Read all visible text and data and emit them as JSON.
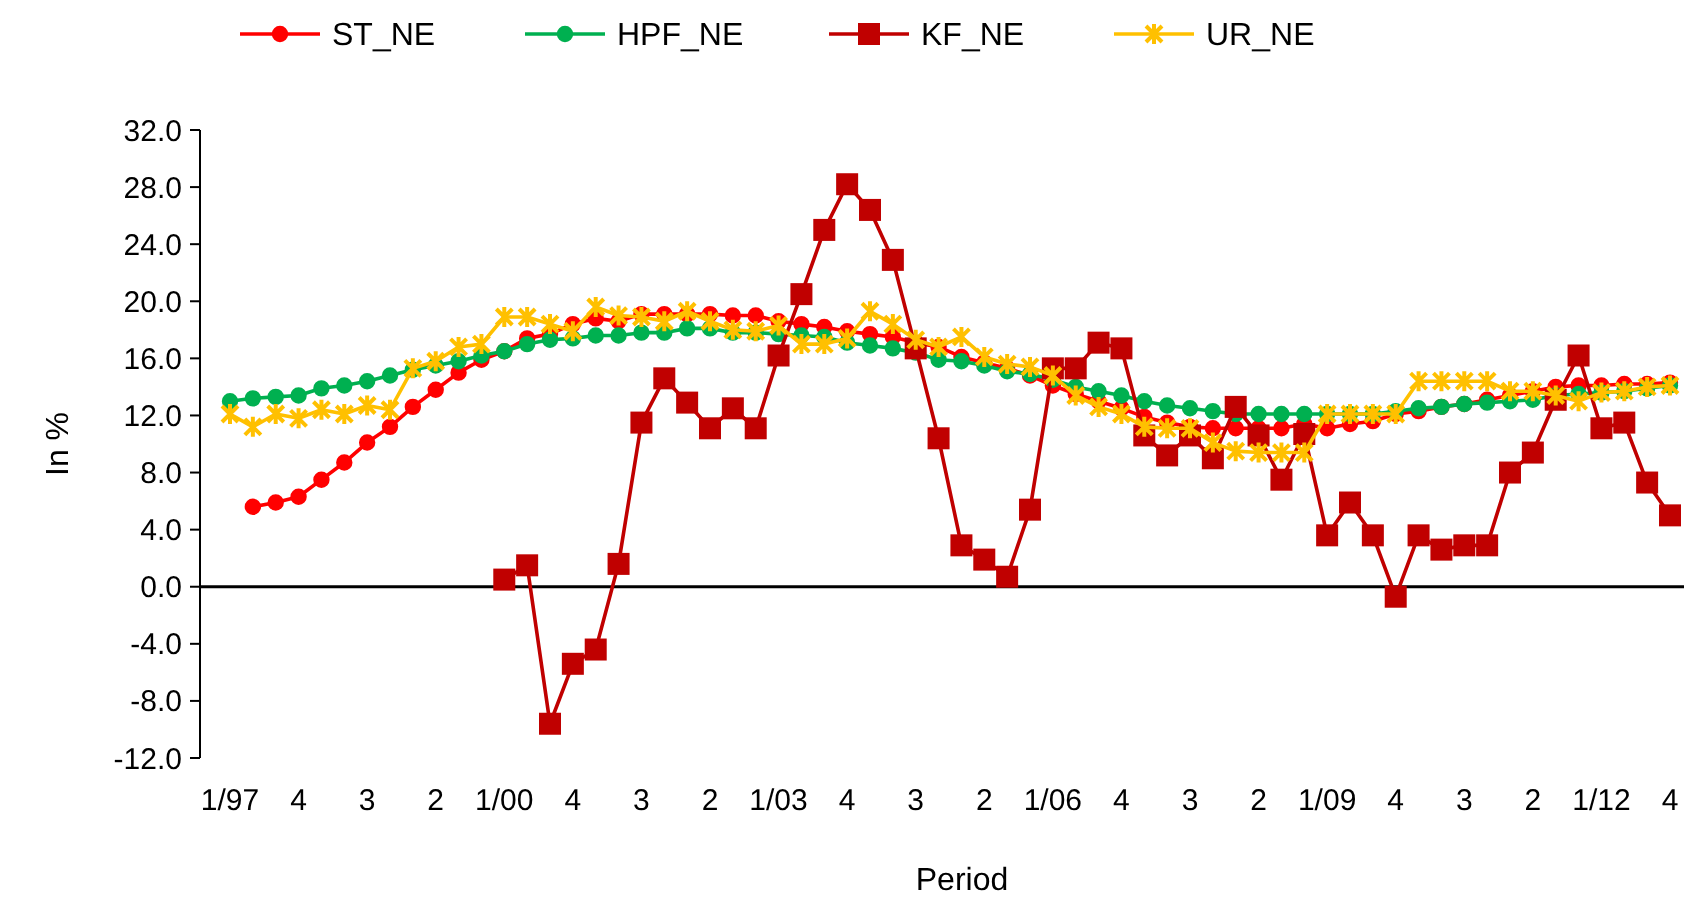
{
  "chart_data": {
    "type": "line",
    "xlabel": "Period",
    "ylabel": "In %",
    "categories": [
      "1/97",
      null,
      null,
      "4",
      null,
      null,
      "3",
      null,
      null,
      "2",
      null,
      null,
      "1/00",
      null,
      null,
      "4",
      null,
      null,
      "3",
      null,
      null,
      "2",
      null,
      null,
      "1/03",
      null,
      null,
      "4",
      null,
      null,
      "3",
      null,
      null,
      "2",
      null,
      null,
      "1/06",
      null,
      null,
      "4",
      null,
      null,
      "3",
      null,
      null,
      "2",
      null,
      null,
      "1/09",
      null,
      null,
      "4",
      null,
      null,
      "3",
      null,
      null,
      "2",
      null,
      null,
      "1/12",
      null,
      null,
      "4"
    ],
    "series": [
      {
        "name": "ST_NE",
        "color": "#ff0000",
        "marker": "circle",
        "values": [
          null,
          5.6,
          5.9,
          6.3,
          7.5,
          8.7,
          10.1,
          11.2,
          12.6,
          13.8,
          15.0,
          15.9,
          16.5,
          17.4,
          17.7,
          18.4,
          18.8,
          18.6,
          19.1,
          19.1,
          19.1,
          19.1,
          19.0,
          19.0,
          18.6,
          18.4,
          18.2,
          17.9,
          17.7,
          17.5,
          17.1,
          16.8,
          16.1,
          15.7,
          15.3,
          14.8,
          14.1,
          13.5,
          13.0,
          12.5,
          11.9,
          11.5,
          11.2,
          11.1,
          11.1,
          11.1,
          11.1,
          11.4,
          11.1,
          11.4,
          11.6,
          12.1,
          12.3,
          12.6,
          12.8,
          13.1,
          13.4,
          13.7,
          14.0,
          14.1,
          14.1,
          14.2,
          14.2,
          14.3
        ]
      },
      {
        "name": "HPF_NE",
        "color": "#00b050",
        "marker": "circle",
        "values": [
          13.0,
          13.2,
          13.3,
          13.4,
          13.9,
          14.1,
          14.4,
          14.8,
          15.2,
          15.5,
          15.8,
          16.2,
          16.5,
          17.0,
          17.3,
          17.4,
          17.6,
          17.6,
          17.8,
          17.8,
          18.1,
          18.1,
          17.8,
          17.8,
          17.7,
          17.6,
          17.5,
          17.1,
          16.9,
          16.7,
          16.4,
          15.9,
          15.8,
          15.5,
          15.1,
          14.9,
          14.5,
          14.0,
          13.7,
          13.4,
          13.0,
          12.7,
          12.5,
          12.3,
          12.1,
          12.1,
          12.1,
          12.1,
          12.1,
          12.1,
          12.1,
          12.3,
          12.5,
          12.6,
          12.8,
          12.9,
          13.0,
          13.1,
          13.4,
          13.5,
          13.6,
          13.7,
          13.9,
          14.1
        ]
      },
      {
        "name": "KF_NE",
        "color": "#c00000",
        "marker": "square",
        "values": [
          null,
          null,
          null,
          null,
          null,
          null,
          null,
          null,
          null,
          null,
          null,
          null,
          0.5,
          1.5,
          -9.6,
          -5.4,
          -4.4,
          1.6,
          11.5,
          14.6,
          12.9,
          11.1,
          12.5,
          11.1,
          16.2,
          20.5,
          25.0,
          28.2,
          26.4,
          22.9,
          16.7,
          10.4,
          2.9,
          1.9,
          0.7,
          5.4,
          15.3,
          15.3,
          17.1,
          16.7,
          10.6,
          9.2,
          10.6,
          9.0,
          12.6,
          10.6,
          7.5,
          10.7,
          3.6,
          5.9,
          3.6,
          -0.7,
          3.6,
          2.6,
          2.9,
          2.9,
          8.0,
          9.4,
          13.1,
          16.2,
          11.1,
          11.5,
          7.3,
          5.0
        ]
      },
      {
        "name": "UR_NE",
        "color": "#ffc000",
        "marker": "cross",
        "values": [
          12.1,
          11.2,
          12.1,
          11.8,
          12.4,
          12.1,
          12.7,
          12.4,
          15.3,
          15.8,
          16.8,
          17.0,
          18.9,
          18.9,
          18.4,
          17.9,
          19.6,
          19.0,
          18.9,
          18.6,
          19.3,
          18.6,
          18.0,
          17.9,
          18.3,
          17.0,
          17.0,
          17.4,
          19.3,
          18.4,
          17.3,
          16.8,
          17.5,
          16.1,
          15.6,
          15.4,
          14.8,
          13.4,
          12.6,
          12.1,
          11.2,
          11.1,
          11.1,
          10.1,
          9.5,
          9.4,
          9.4,
          9.4,
          12.1,
          12.1,
          12.1,
          12.1,
          14.4,
          14.4,
          14.4,
          14.4,
          13.7,
          13.7,
          13.4,
          13.0,
          13.6,
          13.7,
          14.0,
          14.1
        ]
      }
    ],
    "ylim": [
      -12,
      32
    ],
    "yticks": [
      {
        "value": -12,
        "label": "-12.0"
      },
      {
        "value": -8,
        "label": "-8.0"
      },
      {
        "value": -4,
        "label": "-4.0"
      },
      {
        "value": 0,
        "label": "0.0"
      },
      {
        "value": 4,
        "label": "4.0"
      },
      {
        "value": 8,
        "label": "8.0"
      },
      {
        "value": 12,
        "label": "12.0"
      },
      {
        "value": 16,
        "label": "16.0"
      },
      {
        "value": 20,
        "label": "20.0"
      },
      {
        "value": 24,
        "label": "24.0"
      },
      {
        "value": 28,
        "label": "28.0"
      },
      {
        "value": 32,
        "label": "32.0"
      }
    ],
    "legend": "top"
  }
}
